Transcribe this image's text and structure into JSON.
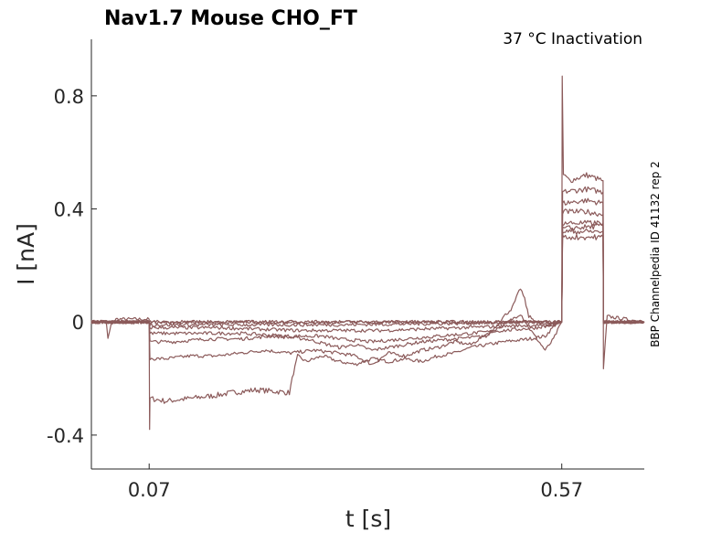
{
  "chart_data": {
    "type": "line",
    "title": "Nav1.7  Mouse  CHO_FT",
    "condition_label": "37 °C  Inactivation",
    "side_label": "BBP Channelpedia ID 41132 rep 2",
    "xlabel": "t [s]",
    "ylabel": "I [nA]",
    "xlim": [
      0.0,
      0.67
    ],
    "ylim": [
      -0.52,
      1.0
    ],
    "x_ticks": [
      {
        "value": 0.07,
        "label": "0.07"
      },
      {
        "value": 0.57,
        "label": "0.57"
      }
    ],
    "y_ticks": [
      {
        "value": -0.4,
        "label": "-0.4"
      },
      {
        "value": 0,
        "label": "0"
      },
      {
        "value": 0.4,
        "label": "0.4"
      },
      {
        "value": 0.8,
        "label": "0.8"
      }
    ],
    "grid": false,
    "trace_color": "#8b5a5a",
    "series": [
      {
        "values": [
          [
            0.0,
            0.0
          ],
          [
            0.018,
            0.0
          ],
          [
            0.02,
            -0.06
          ],
          [
            0.024,
            -0.01
          ],
          [
            0.03,
            0.01
          ],
          [
            0.07,
            0.01
          ],
          [
            0.0705,
            -0.38
          ],
          [
            0.071,
            -0.27
          ],
          [
            0.09,
            -0.28
          ],
          [
            0.12,
            -0.27
          ],
          [
            0.15,
            -0.26
          ],
          [
            0.17,
            -0.25
          ],
          [
            0.2,
            -0.24
          ],
          [
            0.24,
            -0.25
          ],
          [
            0.245,
            -0.18
          ],
          [
            0.25,
            -0.12
          ],
          [
            0.26,
            -0.14
          ],
          [
            0.28,
            -0.12
          ],
          [
            0.3,
            -0.14
          ],
          [
            0.32,
            -0.15
          ],
          [
            0.34,
            -0.13
          ],
          [
            0.36,
            -0.14
          ],
          [
            0.38,
            -0.13
          ],
          [
            0.4,
            -0.14
          ],
          [
            0.42,
            -0.12
          ],
          [
            0.44,
            -0.11
          ],
          [
            0.46,
            -0.09
          ],
          [
            0.5,
            -0.07
          ],
          [
            0.53,
            -0.06
          ],
          [
            0.55,
            -0.05
          ],
          [
            0.565,
            0.0
          ],
          [
            0.57,
            0.0
          ],
          [
            0.5705,
            0.87
          ],
          [
            0.572,
            0.52
          ],
          [
            0.58,
            0.5
          ],
          [
            0.6,
            0.52
          ],
          [
            0.62,
            0.5
          ],
          [
            0.6205,
            -0.17
          ],
          [
            0.625,
            0.02
          ],
          [
            0.67,
            0.0
          ]
        ]
      },
      {
        "values": [
          [
            0.0,
            0.0
          ],
          [
            0.07,
            0.0
          ],
          [
            0.071,
            -0.13
          ],
          [
            0.09,
            -0.13
          ],
          [
            0.12,
            -0.12
          ],
          [
            0.15,
            -0.12
          ],
          [
            0.18,
            -0.11
          ],
          [
            0.21,
            -0.1
          ],
          [
            0.24,
            -0.11
          ],
          [
            0.27,
            -0.1
          ],
          [
            0.3,
            -0.11
          ],
          [
            0.32,
            -0.12
          ],
          [
            0.34,
            -0.15
          ],
          [
            0.36,
            -0.11
          ],
          [
            0.38,
            -0.12
          ],
          [
            0.4,
            -0.1
          ],
          [
            0.42,
            -0.09
          ],
          [
            0.44,
            -0.07
          ],
          [
            0.46,
            -0.08
          ],
          [
            0.48,
            -0.04
          ],
          [
            0.5,
            -0.01
          ],
          [
            0.52,
            0.03
          ],
          [
            0.53,
            -0.02
          ],
          [
            0.55,
            -0.1
          ],
          [
            0.56,
            -0.06
          ],
          [
            0.57,
            0.0
          ],
          [
            0.571,
            0.46
          ],
          [
            0.6,
            0.47
          ],
          [
            0.62,
            0.46
          ],
          [
            0.6205,
            0.0
          ],
          [
            0.67,
            0.0
          ]
        ]
      },
      {
        "values": [
          [
            0.0,
            0.0
          ],
          [
            0.07,
            0.0
          ],
          [
            0.071,
            -0.07
          ],
          [
            0.1,
            -0.07
          ],
          [
            0.14,
            -0.06
          ],
          [
            0.18,
            -0.06
          ],
          [
            0.22,
            -0.05
          ],
          [
            0.26,
            -0.06
          ],
          [
            0.3,
            -0.09
          ],
          [
            0.32,
            -0.08
          ],
          [
            0.34,
            -0.1
          ],
          [
            0.36,
            -0.09
          ],
          [
            0.38,
            -0.08
          ],
          [
            0.4,
            -0.07
          ],
          [
            0.44,
            -0.06
          ],
          [
            0.48,
            -0.05
          ],
          [
            0.5,
            0.02
          ],
          [
            0.51,
            0.05
          ],
          [
            0.52,
            0.12
          ],
          [
            0.525,
            0.08
          ],
          [
            0.53,
            0.02
          ],
          [
            0.55,
            -0.02
          ],
          [
            0.57,
            0.0
          ],
          [
            0.571,
            0.42
          ],
          [
            0.6,
            0.43
          ],
          [
            0.62,
            0.42
          ],
          [
            0.6205,
            0.0
          ],
          [
            0.67,
            0.0
          ]
        ]
      },
      {
        "values": [
          [
            0.0,
            0.0
          ],
          [
            0.07,
            0.0
          ],
          [
            0.071,
            -0.04
          ],
          [
            0.12,
            -0.04
          ],
          [
            0.18,
            -0.04
          ],
          [
            0.24,
            -0.05
          ],
          [
            0.28,
            -0.05
          ],
          [
            0.3,
            -0.06
          ],
          [
            0.34,
            -0.07
          ],
          [
            0.38,
            -0.06
          ],
          [
            0.42,
            -0.05
          ],
          [
            0.46,
            -0.04
          ],
          [
            0.5,
            -0.03
          ],
          [
            0.54,
            -0.02
          ],
          [
            0.57,
            0.0
          ],
          [
            0.571,
            0.39
          ],
          [
            0.6,
            0.39
          ],
          [
            0.62,
            0.38
          ],
          [
            0.6205,
            0.0
          ],
          [
            0.67,
            0.0
          ]
        ]
      },
      {
        "values": [
          [
            0.0,
            0.0
          ],
          [
            0.07,
            0.0
          ],
          [
            0.071,
            -0.02
          ],
          [
            0.15,
            -0.02
          ],
          [
            0.25,
            -0.03
          ],
          [
            0.35,
            -0.03
          ],
          [
            0.45,
            -0.02
          ],
          [
            0.55,
            -0.01
          ],
          [
            0.57,
            0.0
          ],
          [
            0.571,
            0.35
          ],
          [
            0.62,
            0.35
          ],
          [
            0.6205,
            0.0
          ],
          [
            0.67,
            0.0
          ]
        ]
      },
      {
        "values": [
          [
            0.0,
            0.0
          ],
          [
            0.07,
            0.0
          ],
          [
            0.071,
            -0.01
          ],
          [
            0.3,
            -0.01
          ],
          [
            0.57,
            0.0
          ],
          [
            0.571,
            0.33
          ],
          [
            0.62,
            0.34
          ],
          [
            0.6205,
            0.0
          ],
          [
            0.67,
            0.0
          ]
        ]
      },
      {
        "values": [
          [
            0.0,
            0.0
          ],
          [
            0.57,
            0.0
          ],
          [
            0.571,
            0.32
          ],
          [
            0.62,
            0.32
          ],
          [
            0.6205,
            0.0
          ],
          [
            0.67,
            0.0
          ]
        ]
      },
      {
        "values": [
          [
            0.0,
            0.0
          ],
          [
            0.57,
            0.0
          ],
          [
            0.571,
            0.3
          ],
          [
            0.62,
            0.3
          ],
          [
            0.6205,
            0.0
          ],
          [
            0.67,
            0.0
          ]
        ]
      }
    ]
  }
}
